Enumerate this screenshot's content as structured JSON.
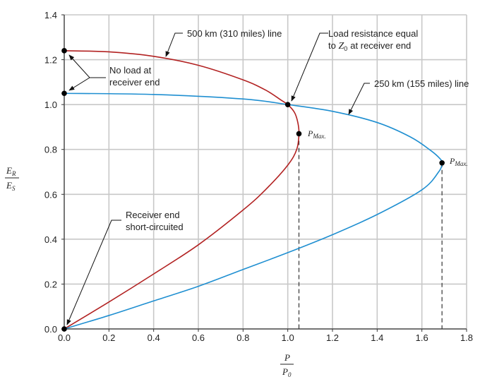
{
  "chart_data": {
    "type": "line",
    "title": "",
    "xlabel": "P / P0",
    "ylabel": "ER / ES",
    "xlim": [
      0,
      1.8
    ],
    "ylim": [
      0,
      1.4
    ],
    "grid": true,
    "x_ticks": [
      "0.0",
      "0.2",
      "0.4",
      "0.6",
      "0.8",
      "1.0",
      "1.2",
      "1.4",
      "1.6",
      "1.8"
    ],
    "y_ticks": [
      "0.0",
      "0.2",
      "0.4",
      "0.6",
      "0.8",
      "1.0",
      "1.2",
      "1.4"
    ],
    "axis_labels": {
      "x_num": "P",
      "x_den": "P",
      "x_den_sub": "0",
      "y_num": "E",
      "y_num_sub": "R",
      "y_den": "E",
      "y_den_sub": "S"
    },
    "series": [
      {
        "name": "500 km (310 miles) line",
        "color": "#b22222",
        "points": [
          [
            0.0,
            1.24
          ],
          [
            0.2,
            1.235
          ],
          [
            0.4,
            1.215
          ],
          [
            0.6,
            1.175
          ],
          [
            0.8,
            1.11
          ],
          [
            0.9,
            1.065
          ],
          [
            0.97,
            1.02
          ],
          [
            1.0,
            1.0
          ],
          [
            1.03,
            0.965
          ],
          [
            1.045,
            0.92
          ],
          [
            1.05,
            0.87
          ],
          [
            1.04,
            0.8
          ],
          [
            1.0,
            0.73
          ],
          [
            0.9,
            0.62
          ],
          [
            0.8,
            0.53
          ],
          [
            0.6,
            0.375
          ],
          [
            0.4,
            0.245
          ],
          [
            0.2,
            0.12
          ],
          [
            0.0,
            0.0
          ]
        ]
      },
      {
        "name": "250 km (155 miles) line",
        "color": "#1f8fd1",
        "points": [
          [
            0.0,
            1.05
          ],
          [
            0.4,
            1.045
          ],
          [
            0.8,
            1.025
          ],
          [
            1.0,
            1.0
          ],
          [
            1.2,
            0.97
          ],
          [
            1.4,
            0.92
          ],
          [
            1.55,
            0.855
          ],
          [
            1.64,
            0.795
          ],
          [
            1.68,
            0.76
          ],
          [
            1.69,
            0.74
          ],
          [
            1.675,
            0.7
          ],
          [
            1.6,
            0.62
          ],
          [
            1.4,
            0.51
          ],
          [
            1.2,
            0.42
          ],
          [
            1.0,
            0.34
          ],
          [
            0.8,
            0.265
          ],
          [
            0.6,
            0.19
          ],
          [
            0.4,
            0.125
          ],
          [
            0.2,
            0.06
          ],
          [
            0.0,
            0.0
          ]
        ]
      }
    ],
    "markers": [
      {
        "x": 0.0,
        "y": 1.24
      },
      {
        "x": 0.0,
        "y": 1.05
      },
      {
        "x": 1.0,
        "y": 1.0
      },
      {
        "x": 1.05,
        "y": 0.87
      },
      {
        "x": 1.69,
        "y": 0.74
      },
      {
        "x": 0.0,
        "y": 0.0
      }
    ],
    "dashed_drops": [
      {
        "x": 1.05,
        "y": 0.87
      },
      {
        "x": 1.69,
        "y": 0.74
      }
    ],
    "annotations": {
      "line500": "500 km (310 miles) line",
      "line250": "250 km (155 miles) line",
      "noload_1": "No load at",
      "noload_2": "receiver end",
      "loadres_1": "Load resistance equal",
      "loadres_2_pre": "to",
      "loadres_2_sym": "Z",
      "loadres_2_sub": "0",
      "loadres_2_post": "at receiver end",
      "short_1": "Receiver end",
      "short_2": "short-circuited",
      "pmax_main": "P",
      "pmax_sub": "Max."
    }
  }
}
